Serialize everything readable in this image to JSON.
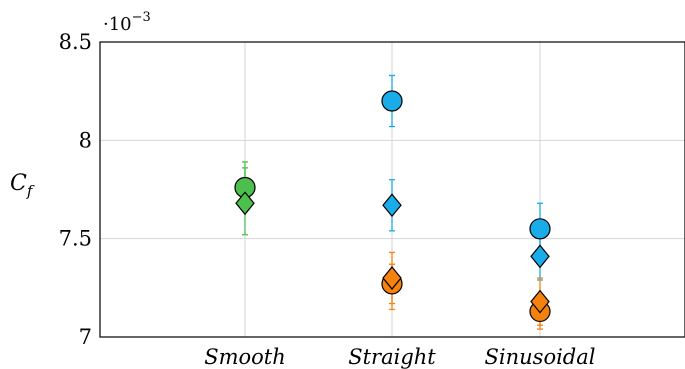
{
  "chart_data": {
    "type": "scatter",
    "title": "",
    "xlabel": "",
    "ylabel": {
      "main": "C",
      "sub": "f"
    },
    "y_multiplier": {
      "base": "·10",
      "exponent": "−3"
    },
    "categories": [
      "Smooth",
      "Straight",
      "Sinusoidal"
    ],
    "ylim": [
      7.0,
      8.5
    ],
    "yticks": [
      {
        "value": 7.0,
        "label": "7"
      },
      {
        "value": 7.5,
        "label": "7.5"
      },
      {
        "value": 8.0,
        "label": "8"
      },
      {
        "value": 8.5,
        "label": "8.5"
      }
    ],
    "grid": true,
    "series": [
      {
        "marker": "circle",
        "color": "#4cbf4c",
        "points": [
          {
            "category": "Smooth",
            "y": 7.76,
            "err": [
              7.64,
              7.89
            ]
          }
        ]
      },
      {
        "marker": "diamond",
        "color": "#4cbf4c",
        "points": [
          {
            "category": "Smooth",
            "y": 7.68,
            "err": [
              7.52,
              7.86
            ]
          }
        ]
      },
      {
        "marker": "circle",
        "color": "#1aace8",
        "points": [
          {
            "category": "Straight",
            "y": 8.2,
            "err": [
              8.07,
              8.33
            ]
          },
          {
            "category": "Sinusoidal",
            "y": 7.55,
            "err": [
              7.42,
              7.68
            ]
          }
        ]
      },
      {
        "marker": "diamond",
        "color": "#1aace8",
        "points": [
          {
            "category": "Straight",
            "y": 7.67,
            "err": [
              7.54,
              7.8
            ]
          },
          {
            "category": "Sinusoidal",
            "y": 7.41,
            "err": [
              7.29,
              7.53
            ]
          }
        ]
      },
      {
        "marker": "circle",
        "color": "#f5820f",
        "points": [
          {
            "category": "Straight",
            "y": 7.27,
            "err": [
              7.17,
              7.37
            ]
          },
          {
            "category": "Sinusoidal",
            "y": 7.13,
            "err": [
              7.04,
              7.22
            ]
          }
        ]
      },
      {
        "marker": "diamond",
        "color": "#f5820f",
        "points": [
          {
            "category": "Straight",
            "y": 7.3,
            "err": [
              7.14,
              7.43
            ]
          },
          {
            "category": "Sinusoidal",
            "y": 7.18,
            "err": [
              7.06,
              7.3
            ]
          }
        ]
      }
    ]
  }
}
